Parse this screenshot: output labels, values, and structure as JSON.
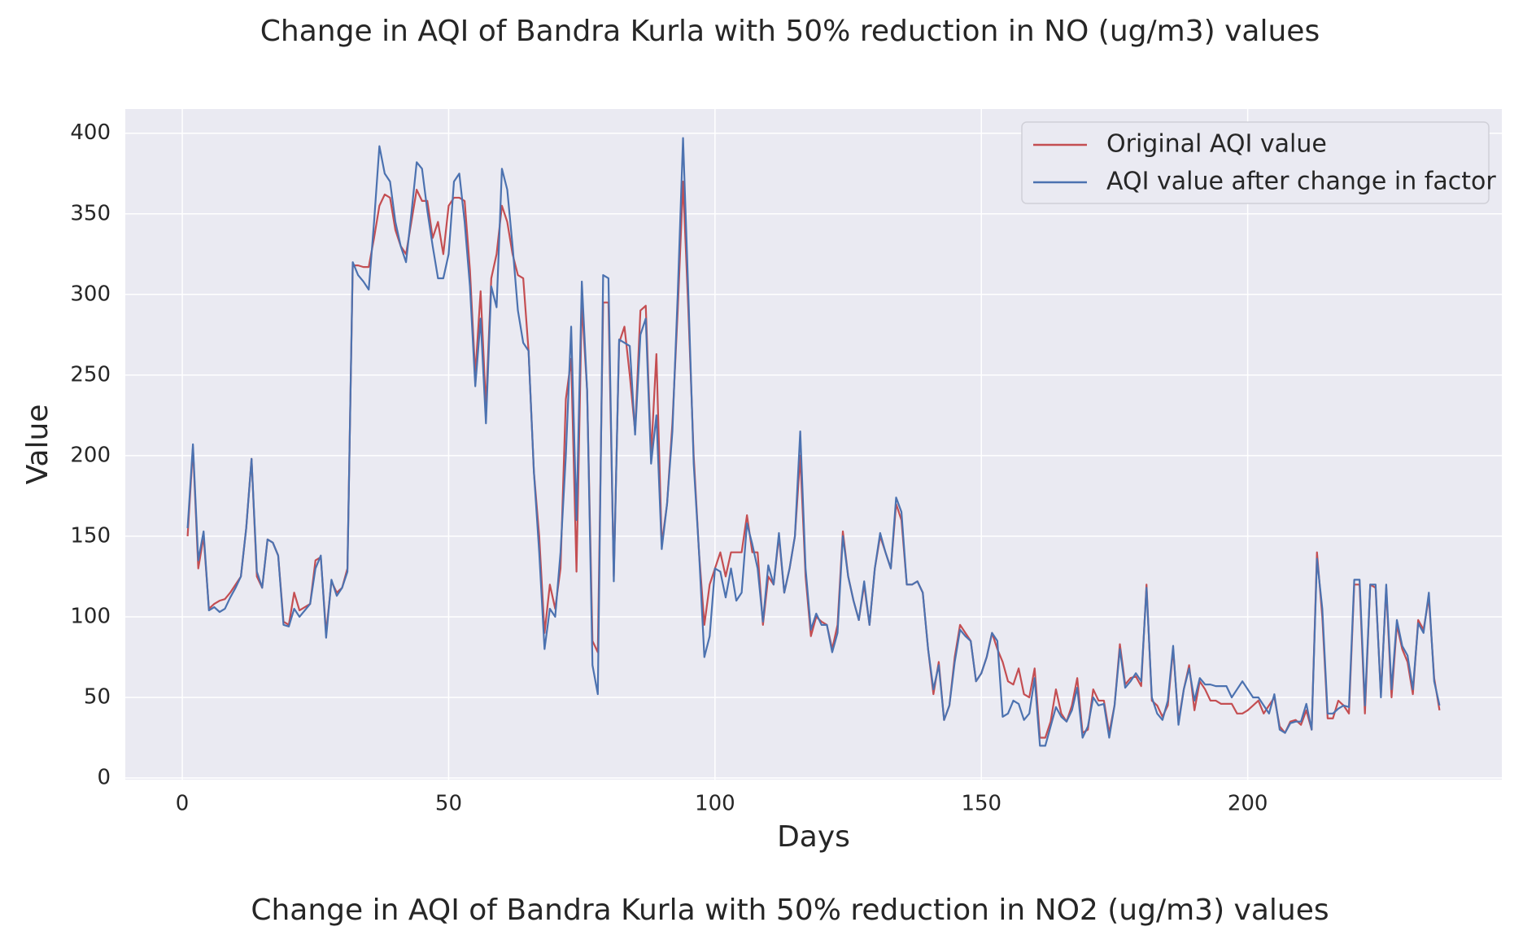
{
  "chart_data": {
    "type": "line",
    "title": "Change in AQI of Bandra Kurla with 50% reduction in NO (ug/m3) values",
    "xlabel": "Days",
    "ylabel": "Value",
    "x": [
      1,
      2,
      3,
      4,
      5,
      6,
      7,
      8,
      9,
      10,
      11,
      12,
      13,
      14,
      15,
      16,
      17,
      18,
      19,
      20,
      21,
      22,
      23,
      24,
      25,
      26,
      27,
      28,
      29,
      30,
      31,
      32,
      33,
      34,
      35,
      36,
      37,
      38,
      39,
      40,
      41,
      42,
      43,
      44,
      45,
      46,
      47,
      48,
      49,
      50,
      51,
      52,
      53,
      54,
      55,
      56,
      57,
      58,
      59,
      60,
      61,
      62,
      63,
      64,
      65,
      66,
      67,
      68,
      69,
      70,
      71,
      72,
      73,
      74,
      75,
      76,
      77,
      78,
      79,
      80,
      81,
      82,
      83,
      84,
      85,
      86,
      87,
      88,
      89,
      90,
      91,
      92,
      93,
      94,
      95,
      96,
      97,
      98,
      99,
      100,
      101,
      102,
      103,
      104,
      105,
      106,
      107,
      108,
      109,
      110,
      111,
      112,
      113,
      114,
      115,
      116,
      117,
      118,
      119,
      120,
      121,
      122,
      123,
      124,
      125,
      126,
      127,
      128,
      129,
      130,
      131,
      132,
      133,
      134,
      135,
      136,
      137,
      138,
      139,
      140,
      141,
      142,
      143,
      144,
      145,
      146,
      147,
      148,
      149,
      150,
      151,
      152,
      153,
      154,
      155,
      156,
      157,
      158,
      159,
      160,
      161,
      162,
      163,
      164,
      165,
      166,
      167,
      168,
      169,
      170,
      171,
      172,
      173,
      174,
      175,
      176,
      177,
      178,
      179,
      180,
      181,
      182,
      183,
      184,
      185,
      186,
      187,
      188,
      189,
      190,
      191,
      192,
      193,
      194,
      195,
      196,
      197,
      198,
      199,
      200,
      201,
      202,
      203,
      204,
      205,
      206,
      207,
      208,
      209,
      210,
      211,
      212,
      213,
      214,
      215,
      216,
      217,
      218,
      219,
      220,
      221,
      222,
      223,
      224,
      225,
      226,
      227,
      228,
      229,
      230,
      231,
      232,
      233,
      234,
      235,
      236
    ],
    "series": [
      {
        "name": "Original AQI value",
        "color": "#c44e52",
        "values": [
          150,
          205,
          130,
          150,
          105,
          108,
          110,
          111,
          115,
          120,
          125,
          155,
          198,
          125,
          118,
          148,
          146,
          138,
          97,
          95,
          115,
          104,
          106,
          108,
          135,
          137,
          90,
          122,
          115,
          118,
          130,
          318,
          318,
          317,
          317,
          335,
          355,
          362,
          360,
          340,
          330,
          325,
          345,
          365,
          358,
          358,
          335,
          345,
          325,
          355,
          360,
          360,
          358,
          315,
          250,
          302,
          230,
          310,
          325,
          355,
          345,
          325,
          312,
          310,
          265,
          190,
          150,
          90,
          120,
          105,
          130,
          235,
          260,
          128,
          295,
          240,
          85,
          78,
          295,
          295,
          125,
          270,
          280,
          250,
          215,
          290,
          293,
          200,
          263,
          145,
          170,
          220,
          290,
          370,
          290,
          200,
          140,
          95,
          120,
          130,
          140,
          125,
          140,
          140,
          140,
          163,
          140,
          140,
          95,
          125,
          120,
          150,
          115,
          130,
          150,
          200,
          125,
          88,
          100,
          97,
          95,
          80,
          95,
          153,
          125,
          110,
          98,
          120,
          95,
          130,
          150,
          140,
          130,
          170,
          160,
          120,
          120,
          122,
          115,
          80,
          52,
          72,
          36,
          45,
          75,
          95,
          90,
          85,
          60,
          65,
          75,
          90,
          80,
          72,
          60,
          58,
          68,
          52,
          50,
          68,
          25,
          25,
          35,
          55,
          40,
          35,
          45,
          62,
          28,
          30,
          55,
          48,
          48,
          28,
          45,
          83,
          58,
          62,
          63,
          57,
          120,
          48,
          45,
          38,
          45,
          80,
          35,
          55,
          70,
          42,
          60,
          55,
          48,
          48,
          46,
          46,
          46,
          40,
          40,
          42,
          45,
          48,
          40,
          45,
          50,
          32,
          28,
          35,
          36,
          33,
          42,
          30,
          140,
          100,
          37,
          37,
          48,
          45,
          40,
          120,
          120,
          40,
          120,
          118,
          52,
          118,
          50,
          95,
          80,
          72,
          52,
          98,
          92,
          112,
          62,
          42
        ]
      },
      {
        "name": "AQI value after change in factor",
        "color": "#4c72b0",
        "values": [
          155,
          207,
          135,
          153,
          104,
          106,
          103,
          105,
          112,
          118,
          125,
          155,
          198,
          128,
          118,
          148,
          146,
          138,
          95,
          94,
          105,
          100,
          104,
          108,
          130,
          138,
          87,
          123,
          113,
          118,
          128,
          320,
          312,
          308,
          303,
          345,
          392,
          375,
          370,
          345,
          330,
          320,
          350,
          382,
          378,
          352,
          330,
          310,
          310,
          325,
          370,
          375,
          345,
          305,
          243,
          285,
          220,
          305,
          292,
          378,
          365,
          330,
          290,
          270,
          265,
          190,
          140,
          80,
          105,
          100,
          140,
          200,
          280,
          160,
          308,
          240,
          70,
          52,
          312,
          310,
          122,
          272,
          270,
          268,
          213,
          275,
          285,
          195,
          225,
          142,
          170,
          215,
          300,
          397,
          300,
          195,
          140,
          75,
          88,
          130,
          128,
          112,
          130,
          110,
          115,
          158,
          145,
          130,
          97,
          132,
          120,
          152,
          115,
          130,
          150,
          215,
          130,
          92,
          102,
          95,
          95,
          78,
          90,
          150,
          125,
          110,
          98,
          122,
          95,
          130,
          152,
          140,
          130,
          174,
          165,
          120,
          120,
          122,
          115,
          80,
          55,
          70,
          36,
          45,
          72,
          92,
          88,
          85,
          60,
          65,
          75,
          90,
          85,
          38,
          40,
          48,
          46,
          36,
          40,
          62,
          20,
          20,
          32,
          44,
          38,
          35,
          42,
          56,
          25,
          32,
          50,
          45,
          46,
          25,
          45,
          80,
          56,
          60,
          65,
          60,
          118,
          50,
          40,
          36,
          48,
          82,
          33,
          55,
          68,
          48,
          62,
          58,
          58,
          57,
          57,
          57,
          50,
          55,
          60,
          55,
          50,
          50,
          45,
          40,
          52,
          30,
          28,
          34,
          35,
          35,
          46,
          30,
          136,
          105,
          40,
          40,
          43,
          45,
          44,
          123,
          123,
          45,
          120,
          120,
          50,
          120,
          55,
          98,
          82,
          76,
          55,
          96,
          90,
          115,
          60,
          45
        ]
      }
    ],
    "xlim": [
      -10.7,
      247.7
    ],
    "ylim": [
      -1,
      415
    ],
    "xticks": [
      0,
      50,
      100,
      150,
      200
    ],
    "yticks": [
      0,
      50,
      100,
      150,
      200,
      250,
      300,
      350,
      400
    ],
    "grid": true,
    "legend": "upper right"
  },
  "next_chart_title": "Change in AQI of Bandra Kurla with 50% reduction in NO2 (ug/m3) values"
}
